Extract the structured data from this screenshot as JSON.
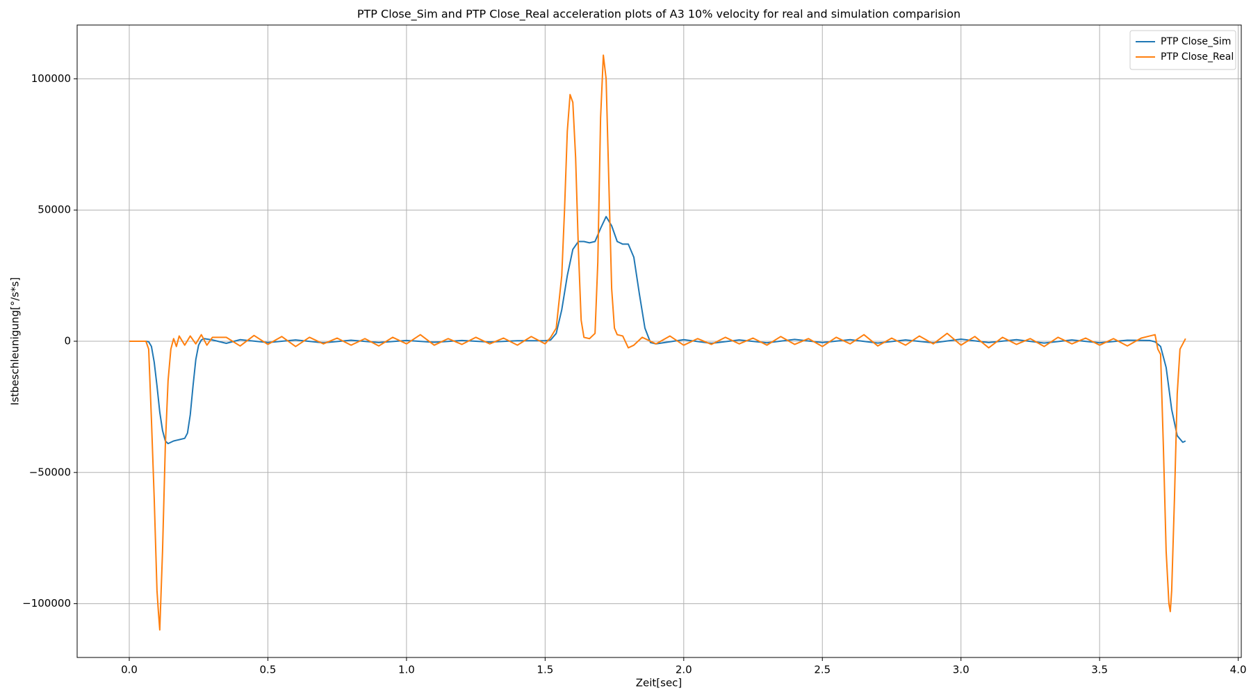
{
  "chart_data": {
    "type": "line",
    "title": "PTP Close_Sim and PTP Close_Real acceleration plots of A3 10% velocity for real and simulation comparision",
    "x_label": "Zeit[sec]",
    "y_label": "Istbeschleunigung[°/s*s]",
    "xlim": [
      -0.188,
      4.011
    ],
    "ylim": [
      -120500,
      120500
    ],
    "xticks": [
      {
        "value": 0,
        "label": "0.0"
      },
      {
        "value": 0.5,
        "label": "0.5"
      },
      {
        "value": 1,
        "label": "1.0"
      },
      {
        "value": 1.5,
        "label": "1.5"
      },
      {
        "value": 2,
        "label": "2.0"
      },
      {
        "value": 2.5,
        "label": "2.5"
      },
      {
        "value": 3,
        "label": "3.0"
      },
      {
        "value": 3.5,
        "label": "3.5"
      },
      {
        "value": 4,
        "label": "4.0"
      }
    ],
    "yticks": [
      {
        "value": -100000,
        "label": "−100000"
      },
      {
        "value": -50000,
        "label": "−50000"
      },
      0,
      50000,
      100000
    ],
    "grid": true,
    "legend": "upper right",
    "series": [
      {
        "name": "PTP Close_Sim",
        "color": "#1f77b4",
        "x": [
          0,
          0.06,
          0.07,
          0.08,
          0.09,
          0.1,
          0.11,
          0.12,
          0.13,
          0.14,
          0.16,
          0.18,
          0.2,
          0.21,
          0.22,
          0.23,
          0.24,
          0.25,
          0.26,
          0.27,
          0.3,
          0.35,
          0.4,
          0.5,
          0.6,
          0.7,
          0.8,
          0.9,
          1.0,
          1.1,
          1.2,
          1.3,
          1.4,
          1.5,
          1.52,
          1.54,
          1.56,
          1.58,
          1.6,
          1.62,
          1.64,
          1.66,
          1.68,
          1.7,
          1.72,
          1.74,
          1.76,
          1.78,
          1.8,
          1.82,
          1.84,
          1.86,
          1.88,
          1.9,
          2.0,
          2.1,
          2.2,
          2.3,
          2.4,
          2.5,
          2.6,
          2.7,
          2.8,
          2.9,
          3.0,
          3.1,
          3.2,
          3.3,
          3.4,
          3.5,
          3.6,
          3.68,
          3.7,
          3.72,
          3.74,
          3.76,
          3.78,
          3.8,
          3.81
        ],
        "values": [
          0,
          0,
          -200,
          -2000,
          -8000,
          -17000,
          -27000,
          -34000,
          -38000,
          -39000,
          -38000,
          -37500,
          -37000,
          -35000,
          -28000,
          -17000,
          -7000,
          -1500,
          500,
          1000,
          500,
          -800,
          600,
          -500,
          500,
          -600,
          400,
          -500,
          300,
          -400,
          300,
          -300,
          200,
          200,
          500,
          3000,
          12000,
          25000,
          35000,
          38000,
          38000,
          37500,
          38000,
          43000,
          47500,
          44000,
          38000,
          37000,
          37000,
          32000,
          18000,
          5000,
          -500,
          -1000,
          600,
          -800,
          500,
          -600,
          700,
          -500,
          600,
          -700,
          500,
          -600,
          800,
          -500,
          600,
          -700,
          500,
          -600,
          400,
          300,
          -200,
          -2000,
          -10000,
          -26000,
          -36000,
          -38500,
          -38000
        ]
      },
      {
        "name": "PTP Close_Real",
        "color": "#ff7f0e",
        "x": [
          0,
          0.03,
          0.06,
          0.07,
          0.08,
          0.09,
          0.1,
          0.105,
          0.11,
          0.12,
          0.13,
          0.14,
          0.15,
          0.16,
          0.17,
          0.18,
          0.2,
          0.22,
          0.24,
          0.26,
          0.28,
          0.3,
          0.35,
          0.4,
          0.45,
          0.5,
          0.55,
          0.6,
          0.65,
          0.7,
          0.75,
          0.8,
          0.85,
          0.9,
          0.95,
          1.0,
          1.05,
          1.1,
          1.15,
          1.2,
          1.25,
          1.3,
          1.35,
          1.4,
          1.45,
          1.5,
          1.52,
          1.54,
          1.56,
          1.57,
          1.58,
          1.59,
          1.6,
          1.61,
          1.62,
          1.63,
          1.64,
          1.66,
          1.68,
          1.69,
          1.7,
          1.71,
          1.72,
          1.73,
          1.74,
          1.75,
          1.76,
          1.78,
          1.8,
          1.82,
          1.85,
          1.9,
          1.95,
          2.0,
          2.05,
          2.1,
          2.15,
          2.2,
          2.25,
          2.3,
          2.35,
          2.4,
          2.45,
          2.5,
          2.55,
          2.6,
          2.65,
          2.7,
          2.75,
          2.8,
          2.85,
          2.9,
          2.95,
          3.0,
          3.05,
          3.1,
          3.15,
          3.2,
          3.25,
          3.3,
          3.35,
          3.4,
          3.45,
          3.5,
          3.55,
          3.6,
          3.65,
          3.7,
          3.71,
          3.72,
          3.73,
          3.74,
          3.75,
          3.755,
          3.76,
          3.77,
          3.78,
          3.79,
          3.8,
          3.81
        ],
        "values": [
          0,
          0,
          0,
          -3000,
          -30000,
          -60000,
          -95000,
          -103000,
          -110000,
          -80000,
          -40000,
          -15000,
          -3000,
          1000,
          -2000,
          2000,
          -1500,
          2000,
          -1000,
          2500,
          -1500,
          1500,
          1500,
          -1800,
          2200,
          -1200,
          1800,
          -2000,
          1500,
          -1000,
          1200,
          -1500,
          1000,
          -1800,
          1500,
          -1000,
          2500,
          -1500,
          1000,
          -1200,
          1500,
          -1000,
          1200,
          -1500,
          1800,
          -1000,
          1500,
          5000,
          25000,
          50000,
          80000,
          94000,
          91000,
          70000,
          35000,
          8000,
          1500,
          1000,
          3000,
          30000,
          85000,
          109000,
          100000,
          60000,
          20000,
          5000,
          2500,
          2000,
          -2500,
          -1500,
          1500,
          -1000,
          2000,
          -1500,
          1000,
          -1200,
          1500,
          -1000,
          1200,
          -1500,
          1800,
          -1200,
          1000,
          -2000,
          1500,
          -1000,
          2500,
          -1800,
          1200,
          -1500,
          2000,
          -1000,
          3000,
          -1500,
          1800,
          -2500,
          1500,
          -1200,
          1000,
          -2000,
          1500,
          -1000,
          1200,
          -1500,
          1000,
          -1800,
          1200,
          2500,
          -3000,
          -5000,
          -40000,
          -80000,
          -100000,
          -103000,
          -95000,
          -60000,
          -20000,
          -3000,
          -1000,
          1000
        ]
      }
    ]
  }
}
